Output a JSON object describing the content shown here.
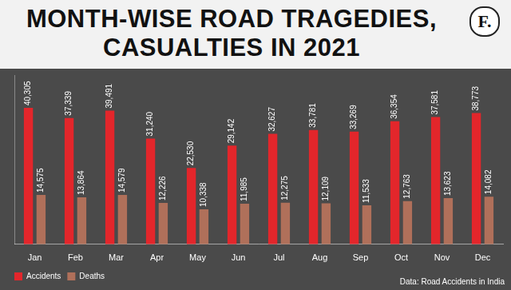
{
  "chart_data": {
    "type": "bar",
    "title": "MONTH-WISE ROAD TRAGEDIES, CASUALTIES IN 2021",
    "logo": "F.",
    "source": "Data: Road Accidents in India",
    "categories": [
      "Jan",
      "Feb",
      "Mar",
      "Apr",
      "May",
      "Jun",
      "Jul",
      "Aug",
      "Sep",
      "Oct",
      "Nov",
      "Dec"
    ],
    "series": [
      {
        "name": "Accidents",
        "color": "#e3262b",
        "values": [
          40305,
          37339,
          39491,
          31240,
          22530,
          29142,
          32627,
          33781,
          33269,
          36354,
          37581,
          38773
        ],
        "value_labels": [
          "40,305",
          "37,339",
          "39,491",
          "31,240",
          "22,530",
          "29,142",
          "32,627",
          "33,781",
          "33,269",
          "36,354",
          "37,581",
          "38,773"
        ]
      },
      {
        "name": "Deaths",
        "color": "#b0705a",
        "values": [
          14575,
          13864,
          14579,
          12226,
          10338,
          11985,
          12275,
          12109,
          11533,
          12763,
          13623,
          14082
        ],
        "value_labels": [
          "14,575",
          "13,864",
          "14,579",
          "12,226",
          "10,338",
          "11,985",
          "12,275",
          "12,109",
          "11,533",
          "12,763",
          "13,623",
          "14,082"
        ]
      }
    ],
    "ylim": [
      0,
      50000
    ],
    "yticks": [],
    "grid": false,
    "legend": "bottom-left",
    "data_labels": true,
    "tick_labels": "x"
  }
}
